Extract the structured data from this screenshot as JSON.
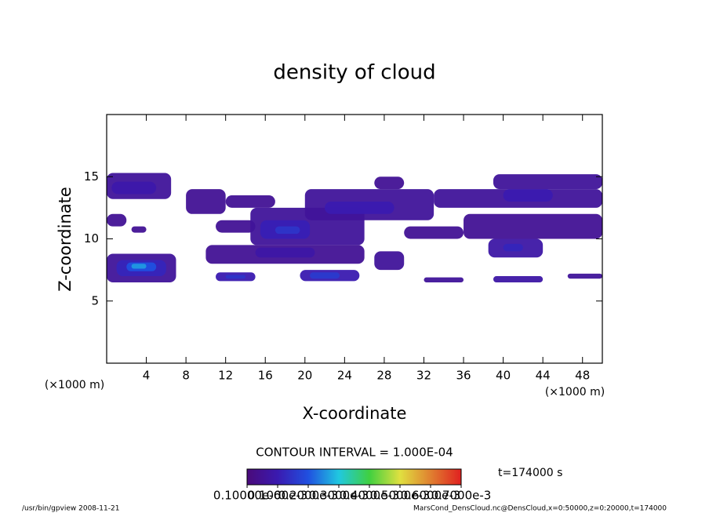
{
  "chart_data": {
    "type": "contour",
    "title": "density of cloud",
    "x_label": "X-coordinate",
    "y_label": "Z-coordinate",
    "x_unit": "(×1000 m)",
    "y_unit": "(×1000 m)",
    "xlim": [
      0,
      50
    ],
    "ylim": [
      0,
      20
    ],
    "xticks": [
      4,
      8,
      12,
      16,
      20,
      24,
      28,
      32,
      36,
      40,
      44,
      48
    ],
    "yticks": [
      5,
      10,
      15
    ],
    "contour_interval": "CONTOUR INTERVAL = 1.000E-04",
    "time_label": "t=174000 s",
    "footer_left": "/usr/bin/gpview  2008-11-21",
    "footer_right": "MarsCond_DensCloud.nc@DensCloud,x=0:50000,z=0:20000,t=174000",
    "colormap": [
      "#4a0a7a",
      "#3a1ab0",
      "#2050e0",
      "#20c8e0",
      "#40d040",
      "#e0e040",
      "#e08030",
      "#e02020"
    ],
    "colorbar": {
      "lim": [
        0,
        0.0007
      ],
      "ticks": [
        {
          "value": 1e-07,
          "label": "0.10000e-6"
        },
        {
          "value": 0.0001,
          "label": "0.1000e-3"
        },
        {
          "value": 0.0002,
          "label": "0.2000e-3"
        },
        {
          "value": 0.0003,
          "label": "0.3000e-3"
        },
        {
          "value": 0.0004,
          "label": "0.4000e-3"
        },
        {
          "value": 0.0005,
          "label": "0.5000e-3"
        },
        {
          "value": 0.0006,
          "label": "0.6000e-3"
        },
        {
          "value": 0.0007,
          "label": "0.7000e-3"
        }
      ]
    },
    "cells": [
      {
        "x0": 0,
        "x1": 6.5,
        "z0": 13.2,
        "z1": 15.3,
        "value": 6e-05
      },
      {
        "x0": 0.5,
        "x1": 5,
        "z0": 13.6,
        "z1": 14.6,
        "value": 9e-05
      },
      {
        "x0": 0,
        "x1": 2,
        "z0": 11,
        "z1": 12,
        "value": 5e-05
      },
      {
        "x0": 2.5,
        "x1": 4,
        "z0": 10.5,
        "z1": 11,
        "value": 5e-05
      },
      {
        "x0": 8,
        "x1": 12,
        "z0": 12,
        "z1": 14,
        "value": 5e-05
      },
      {
        "x0": 12,
        "x1": 17,
        "z0": 12.5,
        "z1": 13.5,
        "value": 5e-05
      },
      {
        "x0": 11,
        "x1": 15,
        "z0": 10.5,
        "z1": 11.5,
        "value": 5e-05
      },
      {
        "x0": 14.5,
        "x1": 26,
        "z0": 9.5,
        "z1": 12.5,
        "value": 6e-05
      },
      {
        "x0": 15.5,
        "x1": 20.5,
        "z0": 10,
        "z1": 11.5,
        "value": 0.00011
      },
      {
        "x0": 17,
        "x1": 19.5,
        "z0": 10.4,
        "z1": 11,
        "value": 0.00015
      },
      {
        "x0": 20,
        "x1": 33,
        "z0": 11.5,
        "z1": 14,
        "value": 6e-05
      },
      {
        "x0": 22,
        "x1": 29,
        "z0": 12,
        "z1": 13,
        "value": 0.0001
      },
      {
        "x0": 27,
        "x1": 30,
        "z0": 14,
        "z1": 15,
        "value": 5e-05
      },
      {
        "x0": 33,
        "x1": 50,
        "z0": 12.5,
        "z1": 14,
        "value": 6e-05
      },
      {
        "x0": 39,
        "x1": 50,
        "z0": 14,
        "z1": 15.2,
        "value": 6e-05
      },
      {
        "x0": 40,
        "x1": 45,
        "z0": 13,
        "z1": 14,
        "value": 0.0001
      },
      {
        "x0": 36,
        "x1": 50,
        "z0": 10,
        "z1": 12,
        "value": 5e-05
      },
      {
        "x0": 30,
        "x1": 36,
        "z0": 10,
        "z1": 11,
        "value": 5e-05
      },
      {
        "x0": 38.5,
        "x1": 44,
        "z0": 8.5,
        "z1": 10,
        "value": 8e-05
      },
      {
        "x0": 40,
        "x1": 42,
        "z0": 9,
        "z1": 9.6,
        "value": 0.00012
      },
      {
        "x0": 10,
        "x1": 26,
        "z0": 8,
        "z1": 9.5,
        "value": 5e-05
      },
      {
        "x0": 15,
        "x1": 21,
        "z0": 8.5,
        "z1": 9.3,
        "value": 8e-05
      },
      {
        "x0": 27,
        "x1": 30,
        "z0": 7.5,
        "z1": 9,
        "value": 6e-05
      },
      {
        "x0": 0,
        "x1": 7,
        "z0": 6.5,
        "z1": 8.8,
        "value": 6e-05
      },
      {
        "x0": 1,
        "x1": 6,
        "z0": 7,
        "z1": 8.3,
        "value": 0.00012
      },
      {
        "x0": 2,
        "x1": 5,
        "z0": 7.4,
        "z1": 8.1,
        "value": 0.0002
      },
      {
        "x0": 2.5,
        "x1": 4,
        "z0": 7.6,
        "z1": 8,
        "value": 0.00026
      },
      {
        "x0": 11,
        "x1": 15,
        "z0": 6.6,
        "z1": 7.3,
        "value": 0.0001
      },
      {
        "x0": 12,
        "x1": 14,
        "z0": 6.8,
        "z1": 7.1,
        "value": 0.00015
      },
      {
        "x0": 19.5,
        "x1": 25.5,
        "z0": 6.6,
        "z1": 7.5,
        "value": 0.0001
      },
      {
        "x0": 20.5,
        "x1": 23.5,
        "z0": 6.8,
        "z1": 7.3,
        "value": 0.00016
      },
      {
        "x0": 32,
        "x1": 36,
        "z0": 6.5,
        "z1": 6.9,
        "value": 6e-05
      },
      {
        "x0": 39,
        "x1": 44,
        "z0": 6.5,
        "z1": 7,
        "value": 8e-05
      },
      {
        "x0": 46.5,
        "x1": 50,
        "z0": 6.8,
        "z1": 7.2,
        "value": 6e-05
      }
    ]
  }
}
